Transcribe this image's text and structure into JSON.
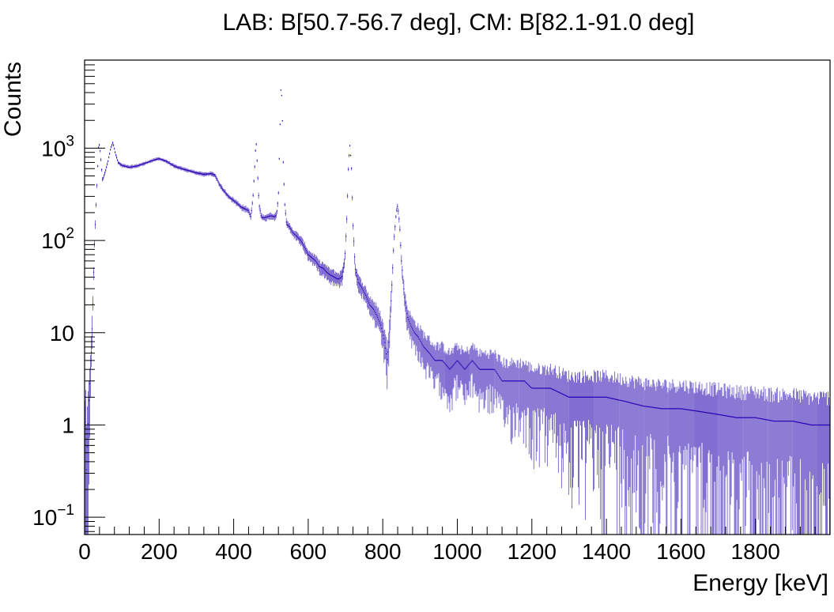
{
  "chart_data": {
    "type": "line",
    "title": "LAB: B[50.7-56.7 deg], CM: B[82.1-91.0 deg]",
    "xlabel": "Energy [keV]",
    "ylabel": "Counts",
    "xlim": [
      0,
      2000
    ],
    "ylim": [
      0.065,
      9000
    ],
    "yscale": "log",
    "grid": false,
    "x_ticks": [
      "0",
      "200",
      "400",
      "600",
      "800",
      "1000",
      "1200",
      "1400",
      "1600",
      "1800"
    ],
    "y_ticks": [
      {
        "value": 0.1,
        "base": "10",
        "exp": "−1"
      },
      {
        "value": 1,
        "base": "1",
        "exp": ""
      },
      {
        "value": 10,
        "base": "10",
        "exp": ""
      },
      {
        "value": 100,
        "base": "10",
        "exp": "2"
      },
      {
        "value": 1000,
        "base": "10",
        "exp": "3"
      }
    ],
    "series": [
      {
        "color": "#2a00b5",
        "error_color": "#6a55c8",
        "points": [
          [
            5,
            0.3
          ],
          [
            12,
            2
          ],
          [
            18,
            6
          ],
          [
            22,
            18
          ],
          [
            26,
            80
          ],
          [
            30,
            200
          ],
          [
            34,
            500
          ],
          [
            38,
            1200
          ],
          [
            42,
            900
          ],
          [
            48,
            450
          ],
          [
            55,
            550
          ],
          [
            62,
            700
          ],
          [
            70,
            1000
          ],
          [
            76,
            1150
          ],
          [
            82,
            900
          ],
          [
            90,
            700
          ],
          [
            100,
            650
          ],
          [
            120,
            620
          ],
          [
            140,
            640
          ],
          [
            160,
            680
          ],
          [
            180,
            730
          ],
          [
            200,
            770
          ],
          [
            220,
            720
          ],
          [
            240,
            640
          ],
          [
            260,
            600
          ],
          [
            280,
            570
          ],
          [
            300,
            540
          ],
          [
            320,
            520
          ],
          [
            340,
            530
          ],
          [
            350,
            510
          ],
          [
            360,
            420
          ],
          [
            370,
            360
          ],
          [
            380,
            320
          ],
          [
            390,
            290
          ],
          [
            400,
            270
          ],
          [
            410,
            250
          ],
          [
            420,
            230
          ],
          [
            430,
            220
          ],
          [
            440,
            210
          ],
          [
            446,
            180
          ],
          [
            452,
            300
          ],
          [
            457,
            700
          ],
          [
            460,
            1250
          ],
          [
            463,
            700
          ],
          [
            468,
            250
          ],
          [
            474,
            180
          ],
          [
            480,
            175
          ],
          [
            490,
            180
          ],
          [
            500,
            185
          ],
          [
            510,
            180
          ],
          [
            515,
            190
          ],
          [
            520,
            300
          ],
          [
            524,
            1500
          ],
          [
            527,
            5000
          ],
          [
            530,
            3000
          ],
          [
            533,
            700
          ],
          [
            537,
            250
          ],
          [
            542,
            150
          ],
          [
            550,
            140
          ],
          [
            560,
            120
          ],
          [
            570,
            110
          ],
          [
            580,
            100
          ],
          [
            590,
            85
          ],
          [
            600,
            70
          ],
          [
            610,
            65
          ],
          [
            620,
            60
          ],
          [
            630,
            52
          ],
          [
            640,
            50
          ],
          [
            650,
            45
          ],
          [
            660,
            42
          ],
          [
            670,
            40
          ],
          [
            680,
            38
          ],
          [
            690,
            40
          ],
          [
            698,
            60
          ],
          [
            704,
            200
          ],
          [
            708,
            700
          ],
          [
            712,
            1100
          ],
          [
            716,
            600
          ],
          [
            720,
            150
          ],
          [
            726,
            50
          ],
          [
            735,
            35
          ],
          [
            745,
            30
          ],
          [
            755,
            25
          ],
          [
            765,
            20
          ],
          [
            775,
            18
          ],
          [
            785,
            15
          ],
          [
            795,
            12
          ],
          [
            805,
            8
          ],
          [
            812,
            5
          ],
          [
            818,
            10
          ],
          [
            824,
            30
          ],
          [
            830,
            100
          ],
          [
            836,
            200
          ],
          [
            840,
            240
          ],
          [
            845,
            150
          ],
          [
            850,
            60
          ],
          [
            858,
            25
          ],
          [
            866,
            15
          ],
          [
            875,
            12
          ],
          [
            885,
            10
          ],
          [
            895,
            9
          ],
          [
            910,
            7
          ],
          [
            925,
            6
          ],
          [
            940,
            5
          ],
          [
            960,
            5
          ],
          [
            980,
            4
          ],
          [
            1000,
            5
          ],
          [
            1020,
            4
          ],
          [
            1040,
            5
          ],
          [
            1060,
            4
          ],
          [
            1080,
            4
          ],
          [
            1100,
            4
          ],
          [
            1120,
            3
          ],
          [
            1140,
            3
          ],
          [
            1160,
            3
          ],
          [
            1180,
            3
          ],
          [
            1200,
            2.5
          ],
          [
            1250,
            2.5
          ],
          [
            1300,
            2
          ],
          [
            1350,
            2
          ],
          [
            1400,
            2
          ],
          [
            1450,
            1.8
          ],
          [
            1500,
            1.6
          ],
          [
            1550,
            1.5
          ],
          [
            1600,
            1.5
          ],
          [
            1650,
            1.4
          ],
          [
            1700,
            1.3
          ],
          [
            1750,
            1.2
          ],
          [
            1800,
            1.2
          ],
          [
            1850,
            1.1
          ],
          [
            1900,
            1.1
          ],
          [
            1950,
            1.0
          ],
          [
            2000,
            1.0
          ]
        ]
      }
    ]
  }
}
